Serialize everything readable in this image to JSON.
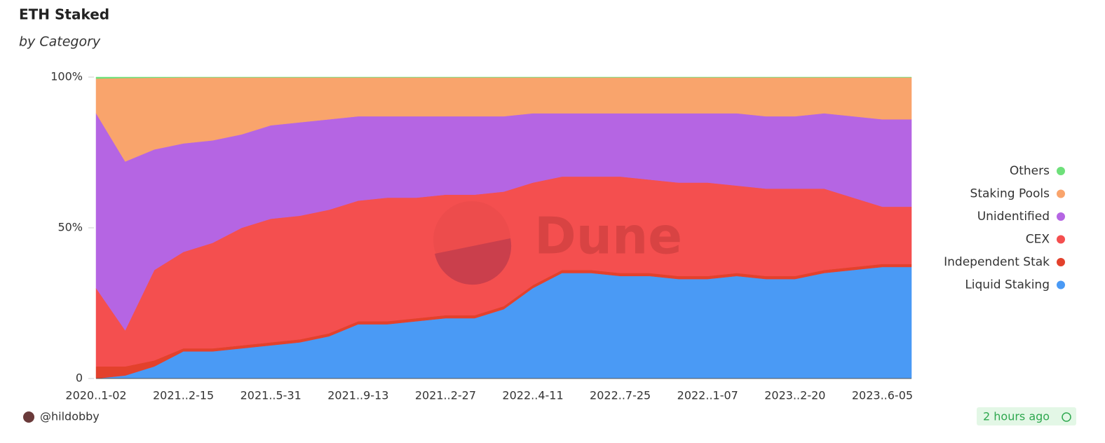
{
  "chart_data": {
    "type": "stacked-area-percent",
    "title": "ETH Staked",
    "subtitle": "by Category",
    "watermark": "Dune",
    "author": "@hildobby",
    "updated": "2 hours ago",
    "categories": [
      "2020..1-02",
      null,
      null,
      "2021..2-15",
      null,
      null,
      "2021..5-31",
      null,
      null,
      "2021..9-13",
      null,
      null,
      "2021..2-27",
      null,
      null,
      "2022..4-11",
      null,
      null,
      "2022..7-25",
      null,
      null,
      "2022..1-07",
      null,
      null,
      "2023..2-20",
      null,
      null,
      "2023..6-05",
      null
    ],
    "series": [
      {
        "name": "Liquid Staking",
        "color": "#4a9af5",
        "values": [
          0,
          1,
          4,
          9,
          9,
          10,
          11,
          12,
          14,
          18,
          18,
          19,
          20,
          20,
          23,
          30,
          35,
          35,
          34,
          34,
          33,
          33,
          34,
          33,
          33,
          35,
          36,
          37,
          37
        ]
      },
      {
        "name": "Independent Stak",
        "color": "#e3412c",
        "values": [
          4,
          3,
          2,
          1,
          1,
          1,
          1,
          1,
          1,
          1,
          1,
          1,
          1,
          1,
          1,
          1,
          1,
          1,
          1,
          1,
          1,
          1,
          1,
          1,
          1,
          1,
          1,
          1,
          1
        ]
      },
      {
        "name": "CEX",
        "color": "#f44f4f",
        "values": [
          26,
          12,
          30,
          32,
          35,
          39,
          41,
          41,
          41,
          40,
          41,
          40,
          40,
          40,
          38,
          34,
          31,
          31,
          32,
          31,
          31,
          31,
          29,
          29,
          29,
          27,
          23,
          19,
          19
        ]
      },
      {
        "name": "Unidentified",
        "color": "#b565e3",
        "values": [
          58,
          56,
          40,
          36,
          34,
          31,
          31,
          31,
          30,
          28,
          27,
          27,
          26,
          26,
          25,
          23,
          21,
          21,
          21,
          22,
          23,
          23,
          24,
          24,
          24,
          25,
          27,
          29,
          29
        ]
      },
      {
        "name": "Staking Pools",
        "color": "#f9a46c",
        "values": [
          11.5,
          27.7,
          23.8,
          21.9,
          20.9,
          18.9,
          15.9,
          14.9,
          13.9,
          12.9,
          12.9,
          12.9,
          12.9,
          12.9,
          12.9,
          11.9,
          11.9,
          11.9,
          11.9,
          11.9,
          11.9,
          11.9,
          11.9,
          12.9,
          12.9,
          11.9,
          12.9,
          13.9,
          13.9
        ]
      },
      {
        "name": "Others",
        "color": "#6ee07a",
        "values": [
          0.5,
          0.3,
          0.2,
          0.1,
          0.1,
          0.1,
          0.1,
          0.1,
          0.1,
          0.1,
          0.1,
          0.1,
          0.1,
          0.1,
          0.1,
          0.1,
          0.1,
          0.1,
          0.1,
          0.1,
          0.1,
          0.1,
          0.1,
          0.1,
          0.1,
          0.1,
          0.1,
          0.1,
          0.1
        ]
      }
    ],
    "ylim": [
      0,
      100
    ],
    "yticks": [
      0,
      {
        "value": 50,
        "label": "50%"
      },
      {
        "value": 100,
        "label": "100%"
      }
    ],
    "legend": "right"
  }
}
